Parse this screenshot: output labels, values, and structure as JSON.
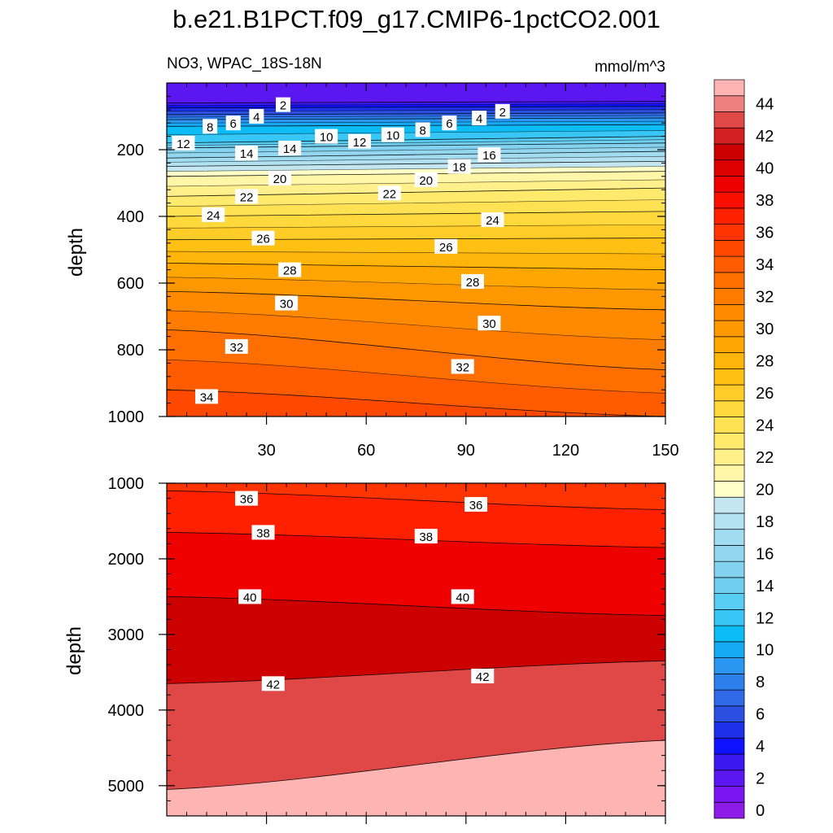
{
  "title": "b.e21.B1PCT.f09_g17.CMIP6-1pctCO2.001",
  "chart_data": {
    "type": "contour",
    "variable_label": "NO3, WPAC_18S-18N",
    "units": "mmol/m^3",
    "ylabel": "depth",
    "xlabel": "",
    "xlim": [
      0,
      150
    ],
    "x_ticks": [
      30,
      60,
      90,
      120,
      150
    ],
    "upper_panel": {
      "ylim": [
        0,
        1000
      ],
      "y_ticks": [
        200,
        400,
        600,
        800,
        1000
      ],
      "contours": [
        {
          "level": 2,
          "depth_left": 60,
          "depth_right": 55
        },
        {
          "level": 4,
          "depth_left": 75,
          "depth_right": 70
        },
        {
          "level": 6,
          "depth_left": 95,
          "depth_right": 90
        },
        {
          "level": 8,
          "depth_left": 110,
          "depth_right": 105
        },
        {
          "level": 10,
          "depth_left": 130,
          "depth_right": 125
        },
        {
          "level": 12,
          "depth_left": 180,
          "depth_right": 160
        },
        {
          "level": 14,
          "depth_left": 195,
          "depth_right": 180
        },
        {
          "level": 16,
          "depth_left": 225,
          "depth_right": 205
        },
        {
          "level": 18,
          "depth_left": 250,
          "depth_right": 235
        },
        {
          "level": 20,
          "depth_left": 280,
          "depth_right": 265
        },
        {
          "level": 22,
          "depth_left": 340,
          "depth_right": 315
        },
        {
          "level": 24,
          "depth_left": 400,
          "depth_right": 385
        },
        {
          "level": 26,
          "depth_left": 470,
          "depth_right": 465
        },
        {
          "level": 28,
          "depth_left": 540,
          "depth_right": 560
        },
        {
          "level": 30,
          "depth_left": 625,
          "depth_right": 680
        },
        {
          "level": 32,
          "depth_left": 740,
          "depth_right": 860
        },
        {
          "level": 34,
          "depth_left": 920,
          "depth_right": 1000
        }
      ],
      "labels": [
        {
          "text": "2",
          "x": 35,
          "depth": 65
        },
        {
          "text": "4",
          "x": 27,
          "depth": 100
        },
        {
          "text": "6",
          "x": 20,
          "depth": 120
        },
        {
          "text": "8",
          "x": 13,
          "depth": 130
        },
        {
          "text": "12",
          "x": 5,
          "depth": 180
        },
        {
          "text": "14",
          "x": 24,
          "depth": 210
        },
        {
          "text": "14",
          "x": 37,
          "depth": 195
        },
        {
          "text": "10",
          "x": 48,
          "depth": 160
        },
        {
          "text": "12",
          "x": 58,
          "depth": 175
        },
        {
          "text": "10",
          "x": 68,
          "depth": 155
        },
        {
          "text": "8",
          "x": 77,
          "depth": 140
        },
        {
          "text": "6",
          "x": 85,
          "depth": 120
        },
        {
          "text": "4",
          "x": 94,
          "depth": 105
        },
        {
          "text": "2",
          "x": 101,
          "depth": 85
        },
        {
          "text": "16",
          "x": 97,
          "depth": 215
        },
        {
          "text": "18",
          "x": 88,
          "depth": 250
        },
        {
          "text": "20",
          "x": 34,
          "depth": 285
        },
        {
          "text": "20",
          "x": 78,
          "depth": 290
        },
        {
          "text": "22",
          "x": 24,
          "depth": 340
        },
        {
          "text": "22",
          "x": 67,
          "depth": 330
        },
        {
          "text": "24",
          "x": 14,
          "depth": 395
        },
        {
          "text": "24",
          "x": 98,
          "depth": 410
        },
        {
          "text": "26",
          "x": 29,
          "depth": 465
        },
        {
          "text": "26",
          "x": 84,
          "depth": 490
        },
        {
          "text": "28",
          "x": 37,
          "depth": 560
        },
        {
          "text": "28",
          "x": 92,
          "depth": 595
        },
        {
          "text": "30",
          "x": 36,
          "depth": 660
        },
        {
          "text": "30",
          "x": 97,
          "depth": 720
        },
        {
          "text": "32",
          "x": 21,
          "depth": 790
        },
        {
          "text": "32",
          "x": 89,
          "depth": 850
        },
        {
          "text": "34",
          "x": 12,
          "depth": 940
        }
      ]
    },
    "lower_panel": {
      "ylim": [
        1000,
        5400
      ],
      "y_ticks": [
        1000,
        2000,
        3000,
        4000,
        5000
      ],
      "contours": [
        {
          "level": 36,
          "depth_left": 1100,
          "depth_right": 1350
        },
        {
          "level": 38,
          "depth_left": 1650,
          "depth_right": 1850
        },
        {
          "level": 40,
          "depth_left": 2500,
          "depth_right": 2750
        },
        {
          "level": 42,
          "depth_left": 3650,
          "depth_right": 3350
        },
        {
          "level": 44,
          "depth_left": 5050,
          "depth_right": 4400
        }
      ],
      "labels": [
        {
          "text": "36",
          "x": 24,
          "depth": 1200
        },
        {
          "text": "36",
          "x": 93,
          "depth": 1280
        },
        {
          "text": "38",
          "x": 29,
          "depth": 1650
        },
        {
          "text": "38",
          "x": 78,
          "depth": 1700
        },
        {
          "text": "40",
          "x": 25,
          "depth": 2500
        },
        {
          "text": "40",
          "x": 89,
          "depth": 2500
        },
        {
          "text": "42",
          "x": 32,
          "depth": 3650
        },
        {
          "text": "42",
          "x": 95,
          "depth": 3550
        }
      ]
    },
    "colorbar": {
      "tick_labels": [
        "0",
        "2",
        "4",
        "6",
        "8",
        "10",
        "12",
        "14",
        "16",
        "18",
        "20",
        "22",
        "24",
        "26",
        "28",
        "30",
        "32",
        "34",
        "36",
        "38",
        "40",
        "42",
        "44"
      ],
      "colors": [
        "#8c1be8",
        "#7b16f2",
        "#5b16f2",
        "#3b18f2",
        "#0f12ff",
        "#1d2fe8",
        "#2b4fe0",
        "#2f69e8",
        "#2c80ee",
        "#2a96f2",
        "#16aaf4",
        "#0cbcf7",
        "#38c6f7",
        "#58cdf4",
        "#6fcff0",
        "#82d2f0",
        "#92d6ef",
        "#a2dcf0",
        "#b2e1f1",
        "#c4e6f1",
        "#ffffc8",
        "#fff6a8",
        "#fff08b",
        "#ffea6e",
        "#ffe154",
        "#ffd83c",
        "#ffcc28",
        "#ffc014",
        "#ffb40a",
        "#ffa600",
        "#ff9800",
        "#ff8a00",
        "#ff7c00",
        "#ff6e00",
        "#ff5c00",
        "#ff4800",
        "#ff3400",
        "#ff2000",
        "#fa0e00",
        "#ee0000",
        "#dc0000",
        "#cc0000",
        "#d42020",
        "#e04848",
        "#f08080",
        "#ffb4b4"
      ]
    }
  }
}
